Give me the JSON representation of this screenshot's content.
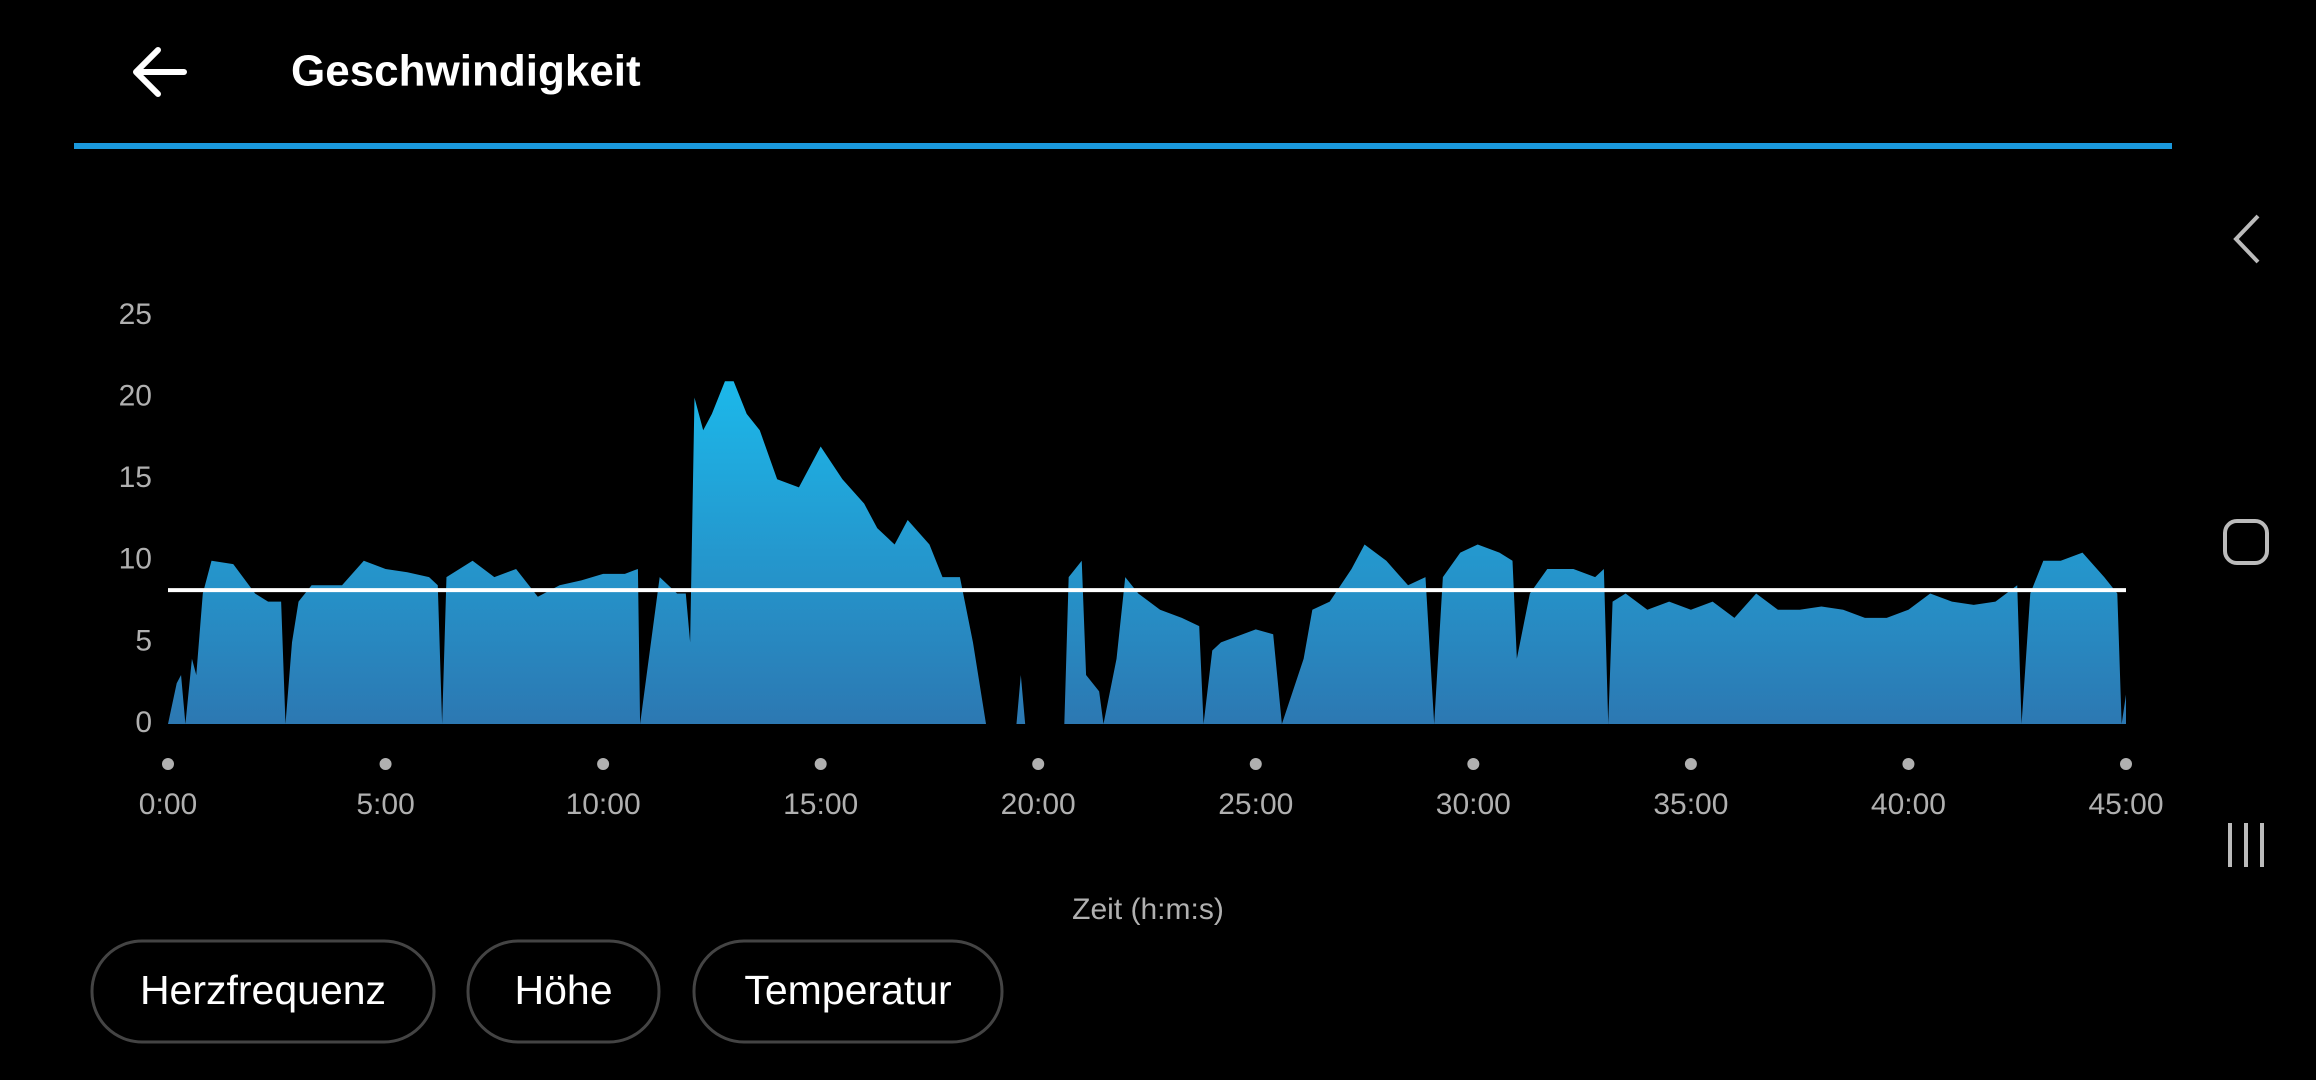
{
  "header": {
    "title": "Geschwindigkeit"
  },
  "chart_data": {
    "type": "area",
    "x": [
      0,
      0.2,
      0.3,
      0.4,
      0.55,
      0.65,
      0.8,
      1.0,
      1.5,
      2.0,
      2.3,
      2.6,
      2.7,
      2.85,
      3.0,
      3.3,
      4.0,
      4.5,
      5.0,
      5.5,
      6.0,
      6.2,
      6.3,
      6.4,
      7.0,
      7.5,
      8.0,
      8.5,
      9.0,
      9.5,
      10.0,
      10.5,
      10.8,
      10.85,
      11.0,
      11.3,
      11.7,
      11.9,
      12.0,
      12.1,
      12.3,
      12.5,
      12.8,
      13.0,
      13.3,
      13.6,
      14.0,
      14.5,
      15.0,
      15.5,
      16.0,
      16.3,
      16.7,
      17.0,
      17.5,
      17.8,
      18.2,
      18.5,
      18.8,
      19.5,
      19.6,
      19.7,
      20.6,
      20.7,
      21.0,
      21.1,
      21.4,
      21.5,
      21.8,
      22.0,
      22.3,
      22.8,
      23.3,
      23.7,
      23.8,
      24.0,
      24.2,
      24.7,
      25.0,
      25.4,
      25.6,
      26.1,
      26.3,
      26.7,
      27.2,
      27.5,
      28.0,
      28.5,
      28.9,
      29.1,
      29.3,
      29.7,
      30.1,
      30.6,
      30.9,
      31.0,
      31.3,
      31.7,
      32.3,
      32.8,
      33.0,
      33.1,
      33.2,
      33.5,
      34,
      34.5,
      35,
      35.5,
      36,
      36.5,
      37,
      37.5,
      38,
      38.5,
      39,
      39.5,
      40,
      40.5,
      41,
      41.5,
      42,
      42.5,
      42.6,
      42.8,
      43.1,
      43.5,
      44,
      44.5,
      44.8,
      44.9,
      45.0
    ],
    "values": [
      0,
      2.5,
      3,
      0,
      4,
      3,
      8,
      10,
      9.8,
      8,
      7.5,
      7.5,
      0,
      5,
      7.5,
      8.5,
      8.5,
      10,
      9.5,
      9.3,
      9,
      8.5,
      0,
      9,
      10,
      9,
      9.5,
      7.8,
      8.5,
      8.8,
      9.2,
      9.2,
      9.5,
      0,
      3,
      9,
      8,
      8,
      5,
      20,
      18,
      19,
      21,
      21,
      19,
      18,
      15,
      14.5,
      17,
      15,
      13.5,
      12,
      11,
      12.5,
      11,
      9,
      9,
      5,
      0,
      0,
      3,
      0,
      0,
      9,
      10,
      3,
      2,
      0,
      4,
      9,
      8,
      7,
      6.5,
      6,
      0,
      4.5,
      5,
      5.5,
      5.8,
      5.5,
      0,
      4,
      7,
      7.5,
      9.5,
      11,
      10,
      8.5,
      9,
      0,
      9,
      10.5,
      11,
      10.5,
      10,
      4,
      8,
      9.5,
      9.5,
      9,
      9.5,
      0,
      7.5,
      8,
      7,
      7.5,
      7,
      7.5,
      6.5,
      8,
      7,
      7,
      7.2,
      7,
      6.5,
      6.5,
      7,
      8,
      7.5,
      7.3,
      7.5,
      8.5,
      0,
      8,
      10,
      10,
      10.5,
      9,
      8,
      0,
      1.8
    ],
    "color": "#1fa3dc",
    "xlim": [
      0,
      45
    ],
    "xticks": [
      {
        "value": 0,
        "label": "0:00"
      },
      {
        "value": 5,
        "label": "5:00"
      },
      {
        "value": 10,
        "label": "10:00"
      },
      {
        "value": 15,
        "label": "15:00"
      },
      {
        "value": 20,
        "label": "20:00"
      },
      {
        "value": 25,
        "label": "25:00"
      },
      {
        "value": 30,
        "label": "30:00"
      },
      {
        "value": 35,
        "label": "35:00"
      },
      {
        "value": 40,
        "label": "40:00"
      },
      {
        "value": 45,
        "label": "45:00"
      }
    ],
    "ylim": [
      0,
      25
    ],
    "yticks": [
      0,
      5,
      10,
      15,
      20,
      25
    ],
    "xlabel": "Zeit (h:m:s)",
    "average_line": 8.2,
    "average_line_color": "#ffffff"
  },
  "buttons": [
    "Herzfrequenz",
    "Höhe",
    "Temperatur"
  ]
}
